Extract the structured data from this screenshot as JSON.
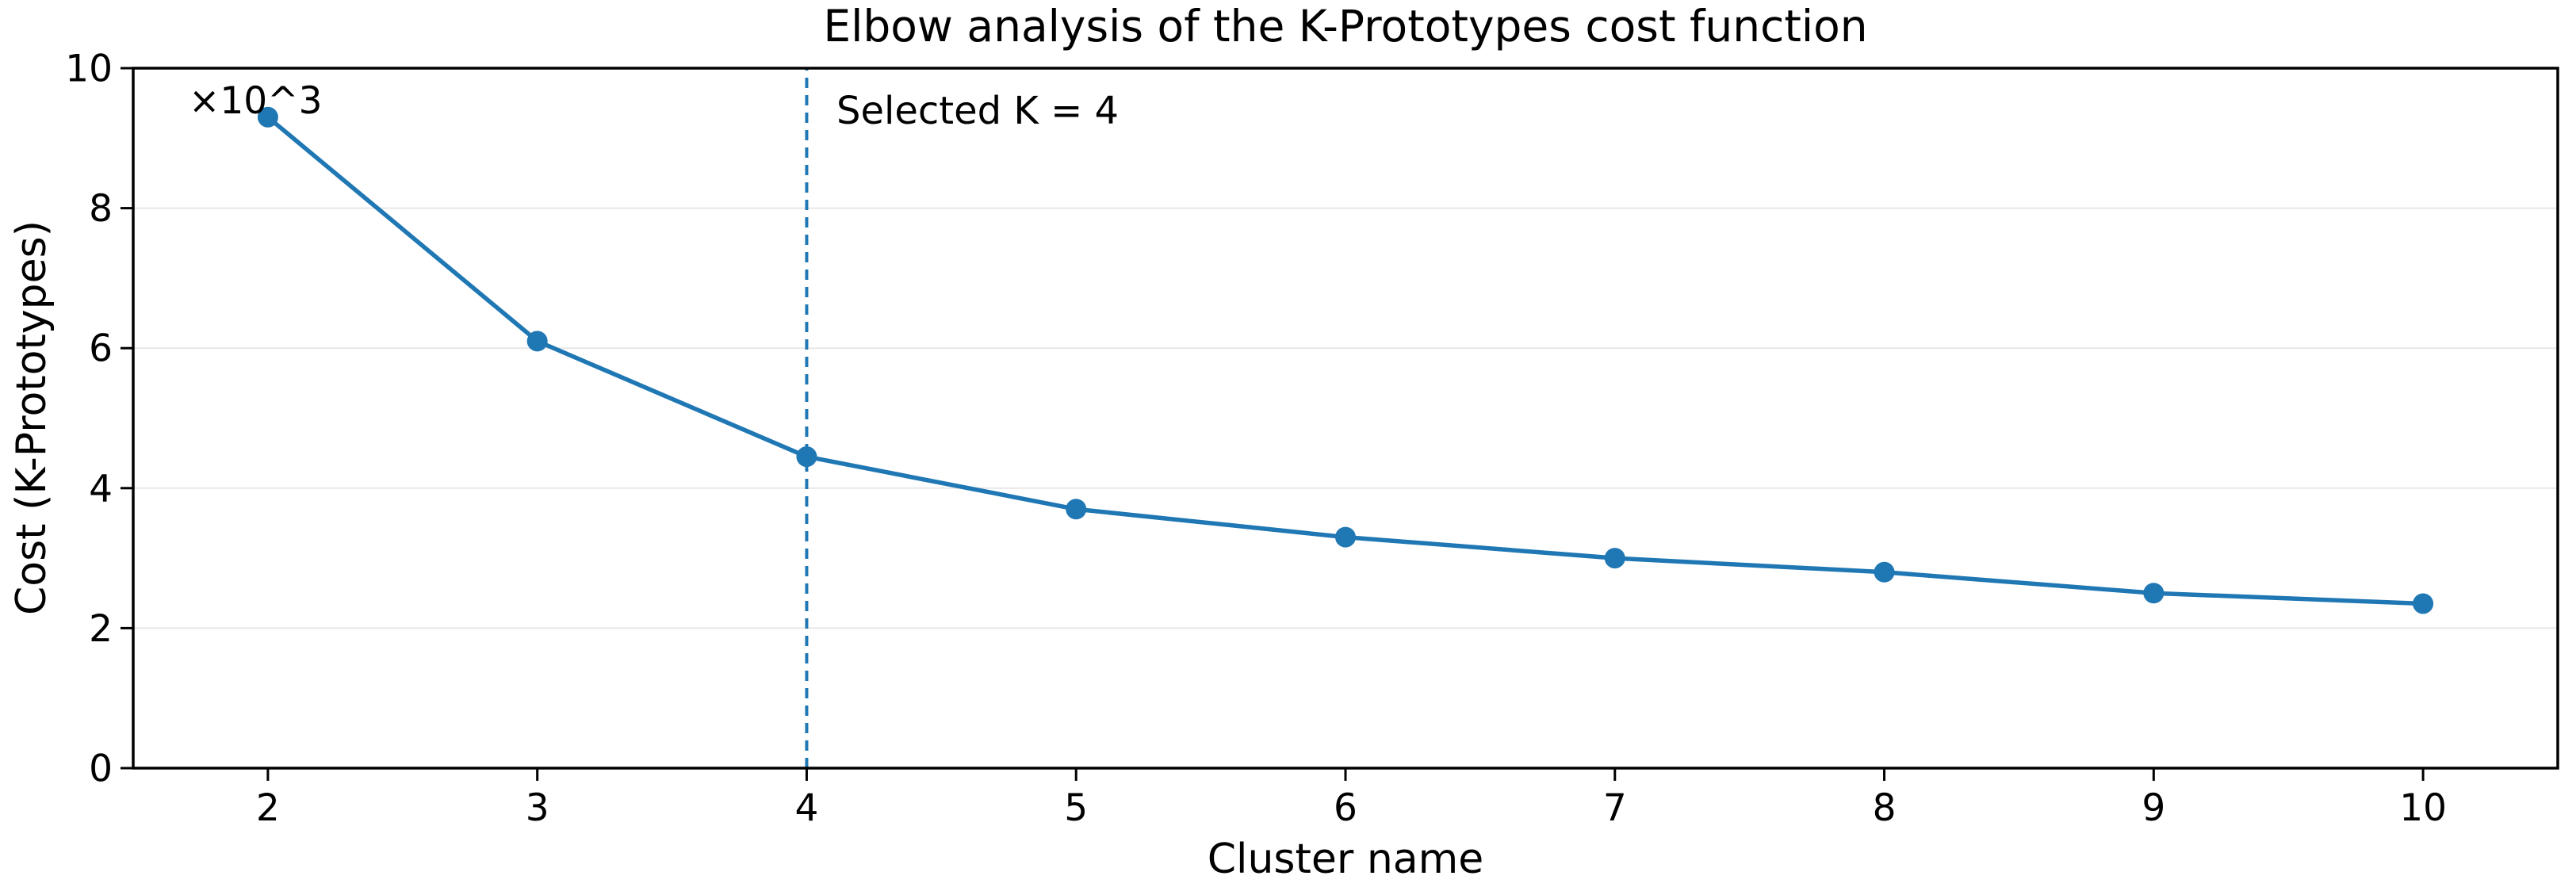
{
  "chart_data": {
    "type": "line",
    "title": "Elbow analysis of the K-Prototypes cost function",
    "xlabel": "Cluster name",
    "ylabel": "Cost (K-Prototypes)",
    "offset_text": "×10^3",
    "x": [
      2,
      3,
      4,
      5,
      6,
      7,
      8,
      9,
      10
    ],
    "y": [
      9.3,
      6.1,
      4.45,
      3.7,
      3.3,
      3.0,
      2.8,
      2.5,
      2.35
    ],
    "y_units_multiplier": "10^3",
    "xlim": [
      1.5,
      10.5
    ],
    "ylim": [
      0,
      10
    ],
    "xticks": [
      2,
      3,
      4,
      5,
      6,
      7,
      8,
      9,
      10
    ],
    "yticks": [
      0,
      2,
      4,
      6,
      8,
      10
    ],
    "grid": "horizontal",
    "legend": "none",
    "vline": {
      "x": 4,
      "style": "dashed",
      "label": "Selected K = 4"
    },
    "colors": {
      "line": "#1f77b4",
      "marker": "#1f77b4",
      "vline": "#1f77b4",
      "grid": "#e8e8e8",
      "spine": "#000000",
      "text": "#000000",
      "background": "#ffffff"
    }
  }
}
